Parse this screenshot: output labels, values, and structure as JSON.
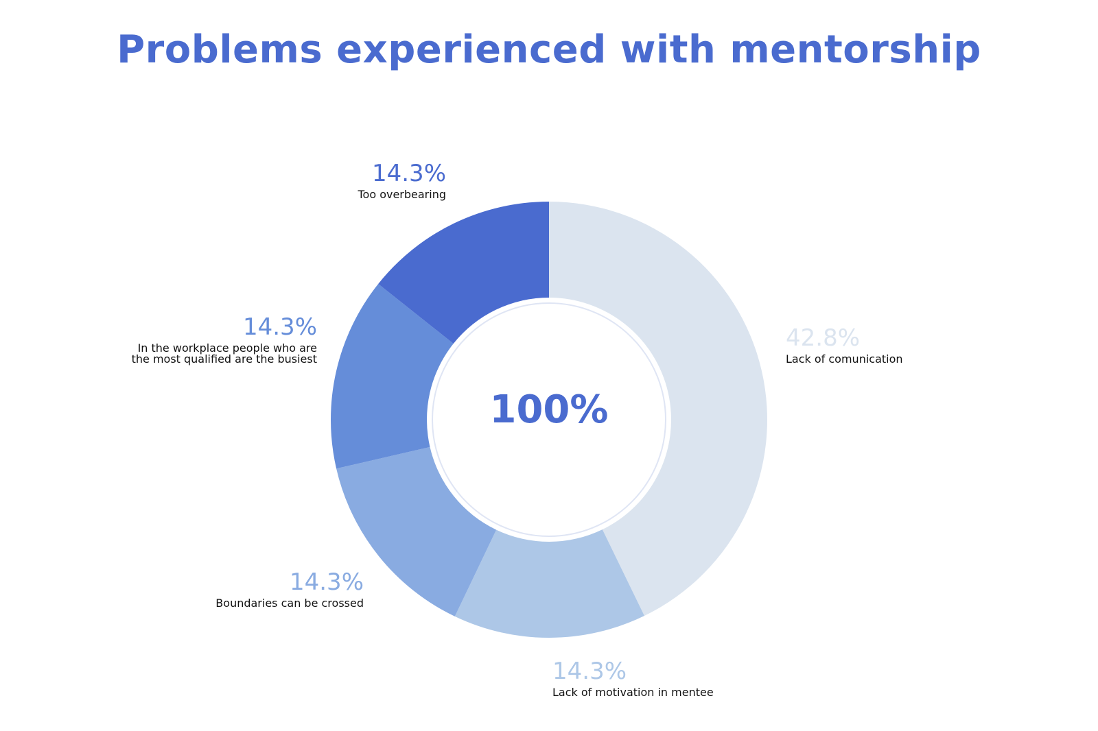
{
  "title": "Problems experienced with mentorship",
  "center_label": "100%",
  "chart_data": {
    "type": "pie",
    "title": "Problems experienced with mentorship",
    "subtitle": "",
    "donut": true,
    "total_label": "100%",
    "slices": [
      {
        "label": "Lack of comunication",
        "value": 42.8,
        "display": "42.8%",
        "color": "#dbe4ef"
      },
      {
        "label": "Lack of motivation in mentee",
        "value": 14.3,
        "display": "14.3%",
        "color": "#adc7e7"
      },
      {
        "label": "Boundaries can be crossed",
        "value": 14.3,
        "display": "14.3%",
        "color": "#89abe1"
      },
      {
        "label": "In the workplace people who are the most qualified are the busiest",
        "value": 14.3,
        "display": "14.3%",
        "color": "#658dd9"
      },
      {
        "label": "Too overbearing",
        "value": 14.3,
        "display": "14.3%",
        "color": "#4a6bcf"
      }
    ]
  },
  "colors": {
    "title": "#4a6bcf",
    "inner_ring": "#dfe5f4"
  }
}
